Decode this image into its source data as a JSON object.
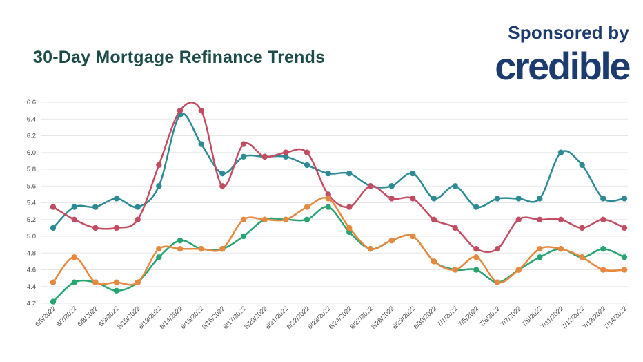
{
  "header": {
    "title": "30-Day Mortgage Refinance Trends",
    "sponsored_by": "Sponsored by",
    "sponsor_name": "credible"
  },
  "colors": {
    "title_text": "#1d4b49",
    "brand_navy": "#1c3c70",
    "grid_line": "#e7e7e7",
    "tick_text": "#4d4d4d",
    "background": "#ffffff",
    "series_teal": "#2b8a94",
    "series_red": "#c24d63",
    "series_orange": "#e6883e",
    "series_green": "#26a572"
  },
  "chart_data": {
    "type": "line",
    "title": "30-Day Mortgage Refinance Trends",
    "xlabel": "",
    "ylabel": "",
    "ylim": [
      4.2,
      6.6
    ],
    "ytick_step": 0.2,
    "ytick_labels": [
      "4.2",
      "4.4",
      "4.6",
      "4.8",
      "5.0",
      "5.2",
      "5.4",
      "5.6",
      "5.8",
      "6.0",
      "6.2",
      "6.4",
      "6.6"
    ],
    "grid": "horizontal",
    "legend": "none",
    "x_labels_rotation_deg": -45,
    "categories": [
      "6/6/2022",
      "6/7/2022",
      "6/8/2022",
      "6/9/2022",
      "6/10/2022",
      "6/13/2022",
      "6/14/2022",
      "6/15/2022",
      "6/16/2022",
      "6/17/2022",
      "6/20/2022",
      "6/21/2022",
      "6/22/2022",
      "6/23/2022",
      "6/24/2022",
      "6/27/2022",
      "6/28/2022",
      "6/29/2022",
      "6/30/2022",
      "7/1/2022",
      "7/5/2022",
      "7/6/2022",
      "7/7/2022",
      "7/8/2022",
      "7/11/2022",
      "7/12/2022",
      "7/13/2022",
      "7/14/2022"
    ],
    "series": [
      {
        "name": "teal",
        "color": "#2b8a94",
        "values": [
          5.1,
          5.35,
          5.35,
          5.45,
          5.35,
          5.6,
          6.45,
          6.1,
          5.75,
          5.95,
          5.95,
          5.95,
          5.85,
          5.75,
          5.75,
          5.6,
          5.6,
          5.75,
          5.45,
          5.6,
          5.35,
          5.45,
          5.45,
          5.45,
          6.0,
          5.85,
          5.45,
          5.45
        ]
      },
      {
        "name": "red",
        "color": "#c24d63",
        "values": [
          5.35,
          5.2,
          5.1,
          5.1,
          5.2,
          5.85,
          6.5,
          6.5,
          5.6,
          6.1,
          5.95,
          6.0,
          6.0,
          5.5,
          5.35,
          5.6,
          5.45,
          5.45,
          5.2,
          5.1,
          4.85,
          4.85,
          5.2,
          5.2,
          5.2,
          5.1,
          5.2,
          5.1
        ]
      },
      {
        "name": "green",
        "color": "#26a572",
        "values": [
          4.22,
          4.45,
          4.45,
          4.35,
          4.45,
          4.75,
          4.95,
          4.85,
          4.85,
          5.0,
          5.2,
          5.2,
          5.2,
          5.35,
          5.05,
          4.85,
          4.95,
          5.0,
          4.7,
          4.6,
          4.6,
          4.45,
          4.6,
          4.75,
          4.85,
          4.75,
          4.85,
          4.75
        ]
      },
      {
        "name": "orange",
        "color": "#e6883e",
        "values": [
          4.45,
          4.75,
          4.45,
          4.45,
          4.45,
          4.85,
          4.85,
          4.85,
          4.85,
          5.2,
          5.2,
          5.2,
          5.35,
          5.45,
          5.1,
          4.85,
          4.95,
          5.0,
          4.7,
          4.6,
          4.75,
          4.45,
          4.6,
          4.85,
          4.85,
          4.75,
          4.6,
          4.6
        ]
      }
    ]
  }
}
